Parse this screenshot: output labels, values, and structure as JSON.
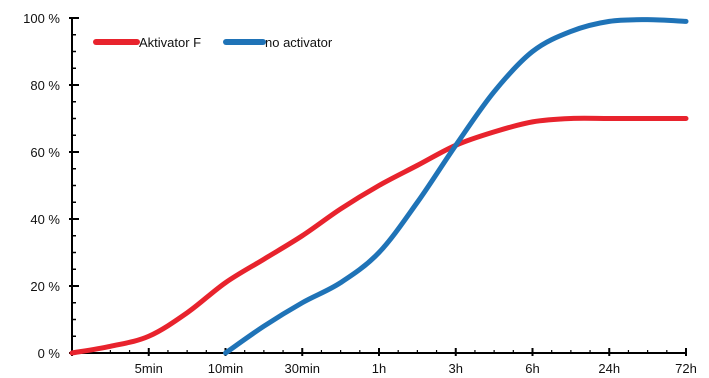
{
  "chart_data": {
    "type": "line",
    "categories": [
      "",
      "5min",
      "10min",
      "30min",
      "1h",
      "3h",
      "6h",
      "24h",
      "72h"
    ],
    "ylim": [
      0,
      100
    ],
    "yticks": [
      "0 %",
      "20 %",
      "40 %",
      "60 %",
      "80 %",
      "100 %"
    ],
    "ytick_values": [
      0,
      20,
      40,
      60,
      80,
      100
    ],
    "grid": false,
    "legend_position": "top-left",
    "series": [
      {
        "name": "Aktivator F",
        "color": "#e8232d",
        "points": [
          [
            0,
            0
          ],
          [
            0.5,
            2
          ],
          [
            1,
            5
          ],
          [
            1.5,
            12
          ],
          [
            2,
            21
          ],
          [
            2.5,
            28
          ],
          [
            3,
            35
          ],
          [
            3.5,
            43
          ],
          [
            4,
            50
          ],
          [
            4.5,
            56
          ],
          [
            5,
            62
          ],
          [
            5.5,
            66
          ],
          [
            6,
            69
          ],
          [
            6.5,
            70
          ],
          [
            7,
            70
          ],
          [
            7.5,
            70
          ],
          [
            8,
            70
          ]
        ]
      },
      {
        "name": "no activator",
        "color": "#1f73b7",
        "points": [
          [
            2,
            0
          ],
          [
            2.5,
            8
          ],
          [
            3,
            15
          ],
          [
            3.5,
            21
          ],
          [
            4,
            30
          ],
          [
            4.5,
            45
          ],
          [
            5,
            62
          ],
          [
            5.5,
            78
          ],
          [
            6,
            90
          ],
          [
            6.5,
            96
          ],
          [
            7,
            99
          ],
          [
            7.5,
            99.5
          ],
          [
            8,
            99
          ]
        ]
      }
    ]
  }
}
